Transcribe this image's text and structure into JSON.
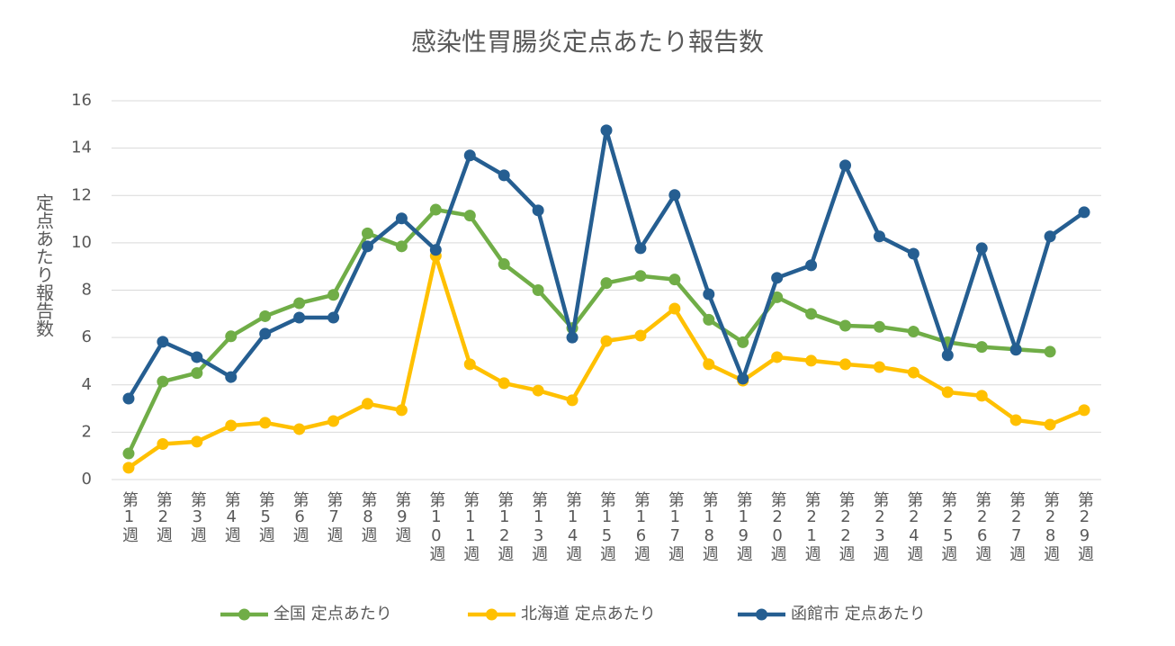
{
  "chart_data": {
    "type": "line",
    "title": "感染性胃腸炎定点あたり報告数",
    "y_label": "定点あたり報告数",
    "categories": [
      "第1週",
      "第2週",
      "第3週",
      "第4週",
      "第5週",
      "第6週",
      "第7週",
      "第8週",
      "第9週",
      "第10週",
      "第11週",
      "第12週",
      "第13週",
      "第14週",
      "第15週",
      "第16週",
      "第17週",
      "第18週",
      "第19週",
      "第20週",
      "第21週",
      "第22週",
      "第23週",
      "第24週",
      "第25週",
      "第26週",
      "第27週",
      "第28週",
      "第29週"
    ],
    "series": [
      {
        "name": "全国 定点あたり",
        "color": "#70ad47",
        "values": [
          1.1,
          4.14,
          4.5,
          6.05,
          6.9,
          7.45,
          7.8,
          10.4,
          9.85,
          11.4,
          11.15,
          9.1,
          8.0,
          6.4,
          8.3,
          8.6,
          8.45,
          6.75,
          5.8,
          7.7,
          7.0,
          6.5,
          6.45,
          6.25,
          5.8,
          5.6,
          5.5,
          5.4,
          null
        ]
      },
      {
        "name": "北海道 定点あたり",
        "color": "#ffc000",
        "values": [
          0.5,
          1.5,
          1.6,
          2.28,
          2.4,
          2.13,
          2.47,
          3.2,
          2.93,
          9.45,
          4.87,
          4.07,
          3.76,
          3.35,
          5.85,
          6.08,
          7.22,
          4.87,
          4.18,
          5.17,
          5.02,
          4.87,
          4.75,
          4.52,
          3.69,
          3.54,
          2.51,
          2.32,
          2.93
        ]
      },
      {
        "name": "函館市 定点あたり",
        "color": "#255e91",
        "values": [
          3.42,
          5.82,
          5.17,
          4.33,
          6.16,
          6.84,
          6.84,
          9.85,
          11.03,
          9.7,
          13.69,
          12.85,
          11.37,
          6.0,
          14.75,
          9.77,
          12.02,
          7.83,
          4.26,
          8.52,
          9.05,
          13.27,
          10.27,
          9.54,
          5.25,
          9.77,
          5.48,
          10.27,
          11.29
        ]
      }
    ],
    "ylim": [
      0,
      16
    ],
    "yticks": [
      0,
      2,
      4,
      6,
      8,
      10,
      12,
      14,
      16
    ],
    "grid": true,
    "legend": "bottom"
  }
}
